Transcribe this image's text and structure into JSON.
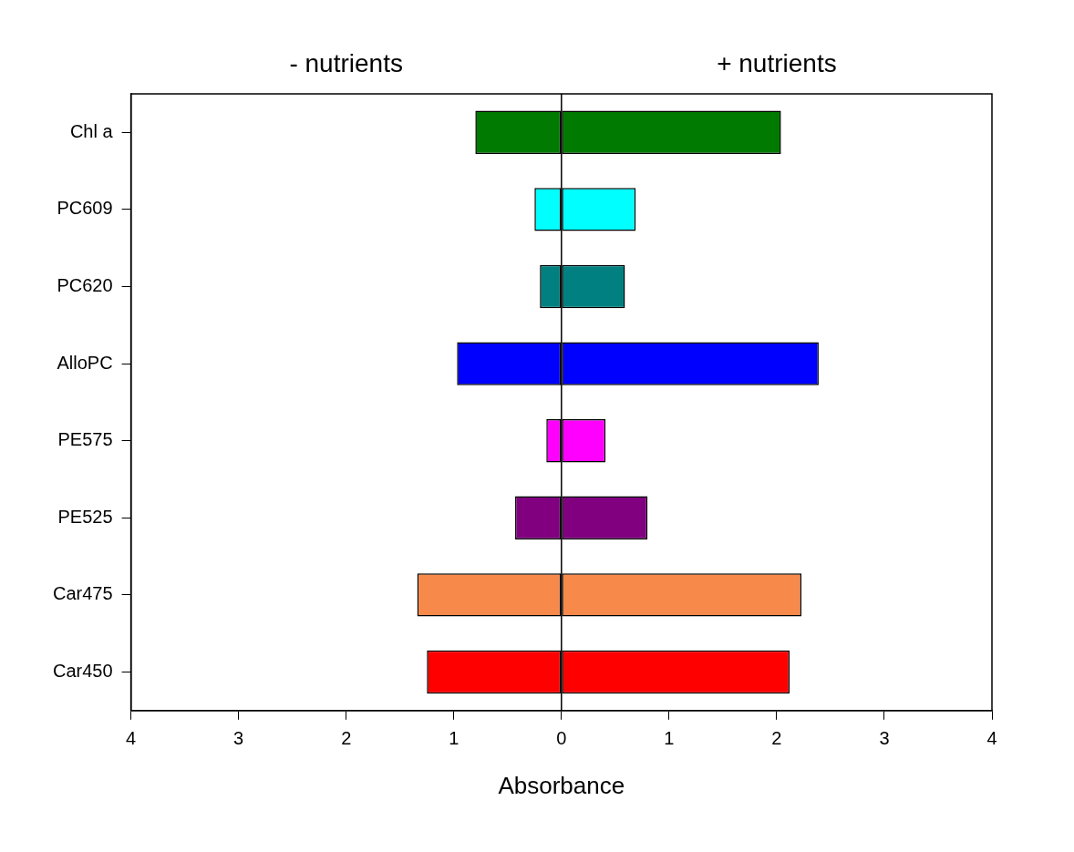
{
  "chart_data": {
    "type": "bar",
    "orientation": "horizontal",
    "stacked": true,
    "xlabel": "Absorbance",
    "annotations": [
      "- nutrients",
      "+ nutrients"
    ],
    "categories": [
      "Chl a",
      "PC609",
      "PC620",
      "AlloPC",
      "PE575",
      "PE525",
      "Car475",
      "Car450"
    ],
    "series": [
      {
        "colors": [
          "#007a00",
          "#00ffff",
          "#008080",
          "#0000ff",
          "#ff00ff",
          "#800080",
          "#f7894a",
          "#ff0000"
        ],
        "values": [
          -0.8,
          -0.25,
          -0.2,
          -0.97,
          -0.14,
          -0.43,
          -1.34,
          -1.25
        ]
      },
      {
        "colors": [
          "#007a00",
          "#00ffff",
          "#008080",
          "#0000ff",
          "#ff00ff",
          "#800080",
          "#f7894a",
          "#ff0000"
        ],
        "values": [
          2.04,
          0.69,
          0.59,
          2.39,
          0.41,
          0.8,
          2.23,
          2.12
        ]
      }
    ],
    "xlim": [
      -4,
      4
    ],
    "xticks": [
      {
        "value": -4,
        "label": "4"
      },
      {
        "value": -3,
        "label": "3"
      },
      {
        "value": -2,
        "label": "2"
      },
      {
        "value": -1,
        "label": "1"
      },
      0,
      1,
      2,
      3,
      4
    ],
    "ref_lines": [
      {
        "axis": "x",
        "value": 0
      }
    ],
    "grid": false,
    "legend": false
  }
}
